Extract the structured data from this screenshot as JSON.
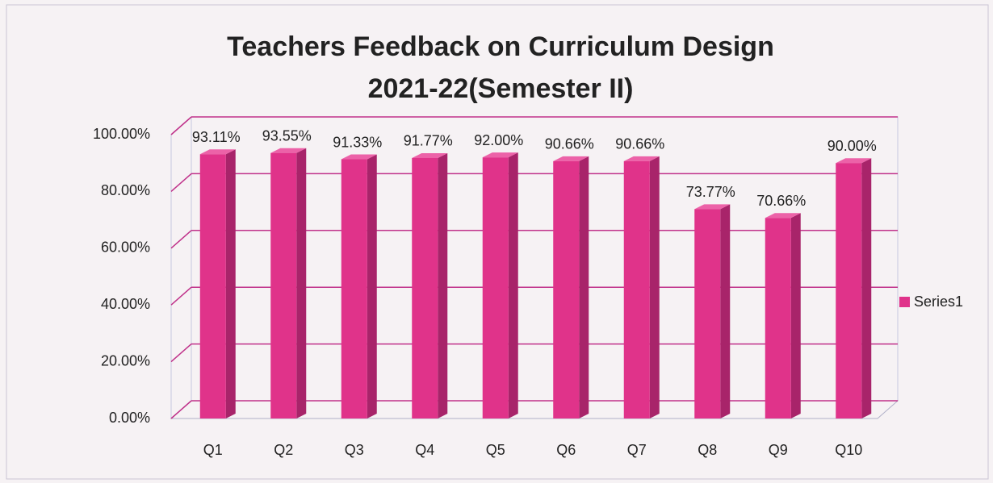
{
  "chart_data": {
    "type": "bar",
    "title": [
      "Teachers Feedback on Curriculum Design",
      "2021-22(Semester II)"
    ],
    "categories": [
      "Q1",
      "Q2",
      "Q3",
      "Q4",
      "Q5",
      "Q6",
      "Q7",
      "Q8",
      "Q9",
      "Q10"
    ],
    "series": [
      {
        "name": "Series1",
        "color": "#e0338a",
        "values": [
          93.11,
          93.55,
          91.33,
          91.77,
          92.0,
          90.66,
          90.66,
          73.77,
          70.66,
          90.0
        ],
        "value_labels": [
          "93.11%",
          "93.55%",
          "91.33%",
          "91.77%",
          "92.00%",
          "90.66%",
          "90.66%",
          "73.77%",
          "70.66%",
          "90.00%"
        ]
      }
    ],
    "ylim": [
      0,
      100
    ],
    "yticks": [
      {
        "value": 0,
        "label": "0.00%"
      },
      {
        "value": 20,
        "label": "20.00%"
      },
      {
        "value": 40,
        "label": "40.00%"
      },
      {
        "value": 60,
        "label": "60.00%"
      },
      {
        "value": 80,
        "label": "80.00%"
      },
      {
        "value": 100,
        "label": "100.00%"
      }
    ],
    "grid": true,
    "legend": "right"
  }
}
